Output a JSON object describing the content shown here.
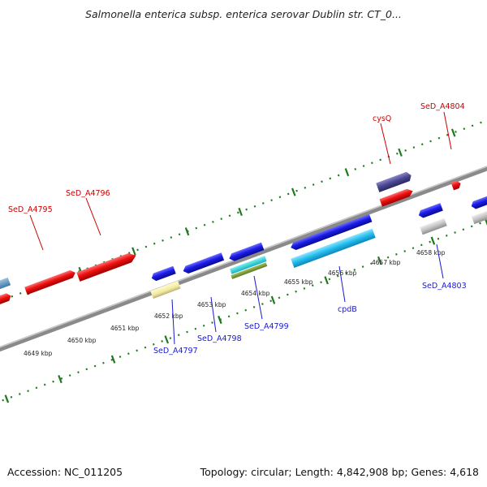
{
  "title": "Salmonella enterica subsp. enterica serovar Dublin str. CT_0...",
  "footer": {
    "accession": "Accession: NC_011205",
    "summary": "Topology: circular; Length: 4,842,908 bp; Genes: 4,618"
  },
  "colors": {
    "backbone": "#8a8a8a",
    "ruler_ticks": "#1f7a1f",
    "forward_label": "#cc0000",
    "reverse_label": "#1a1acc"
  },
  "scale_labels": [
    "4649 kbp",
    "4650 kbp",
    "4651 kbp",
    "4652 kbp",
    "4653 kbp",
    "4654 kbp",
    "4655 kbp",
    "4656 kbp",
    "4657 kbp",
    "4658 kbp"
  ],
  "forward_gene_labels": [
    "SeD_A4795",
    "SeD_A4796",
    "cysQ",
    "SeD_A4804"
  ],
  "reverse_gene_labels": [
    "SeD_A4797",
    "SeD_A4798",
    "SeD_A4799",
    "cpdB",
    "SeD_A4803"
  ]
}
